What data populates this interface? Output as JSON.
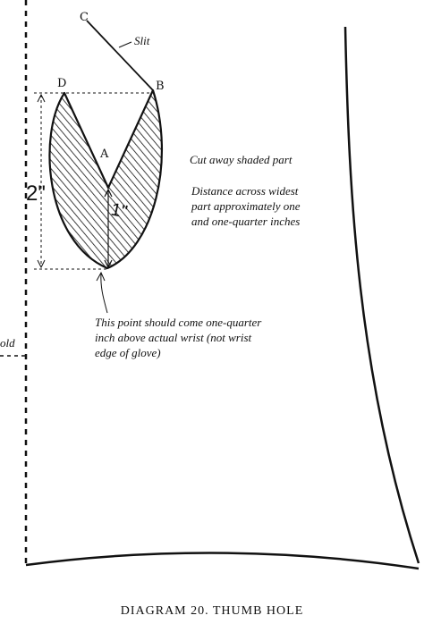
{
  "points": {
    "a": "A",
    "b": "B",
    "c": "C",
    "d": "D"
  },
  "slit_label": "Slit",
  "dimensions": {
    "height": "2\"",
    "inner": "1\""
  },
  "notes": {
    "cut_away": "Cut away shaded part",
    "distance": [
      "Distance across widest",
      "part approximately one",
      "and one-quarter inches"
    ],
    "wrist_point": [
      "This point should come one-quarter",
      "inch above actual wrist (not wrist",
      "edge of glove)"
    ]
  },
  "fold_label": "old",
  "caption": "DIAGRAM 20.  THUMB HOLE",
  "colors": {
    "ink": "#111111",
    "paper": "#ffffff"
  }
}
